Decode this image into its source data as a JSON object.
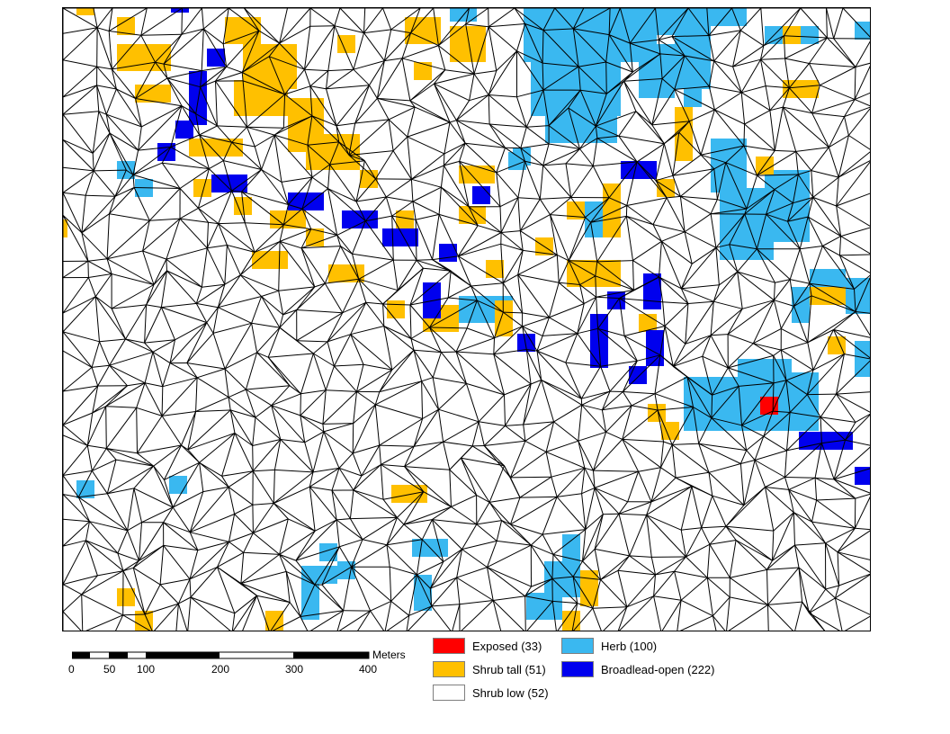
{
  "map": {
    "classes": {
      "exposed": {
        "color": "#ff0000"
      },
      "shrub_tall": {
        "color": "#ffc000"
      },
      "shrub_low": {
        "color": "#ffffff"
      },
      "herb": {
        "color": "#3ab8f0"
      },
      "broadlead_open": {
        "color": "#0000ee"
      }
    },
    "mesh_color": "#000000"
  },
  "scalebar": {
    "unit_label": "Meters",
    "ticks": [
      "0",
      "50",
      "100",
      "200",
      "300",
      "400"
    ]
  },
  "legend": {
    "items": [
      {
        "label": "Exposed (33)",
        "color": "#ff0000"
      },
      {
        "label": "Herb (100)",
        "color": "#3ab8f0"
      },
      {
        "label": "Shrub tall (51)",
        "color": "#ffc000"
      },
      {
        "label": "Broadlead-open (222)",
        "color": "#0000ee"
      },
      {
        "label": "Shrub low (52)",
        "color": "#ffffff"
      }
    ]
  }
}
